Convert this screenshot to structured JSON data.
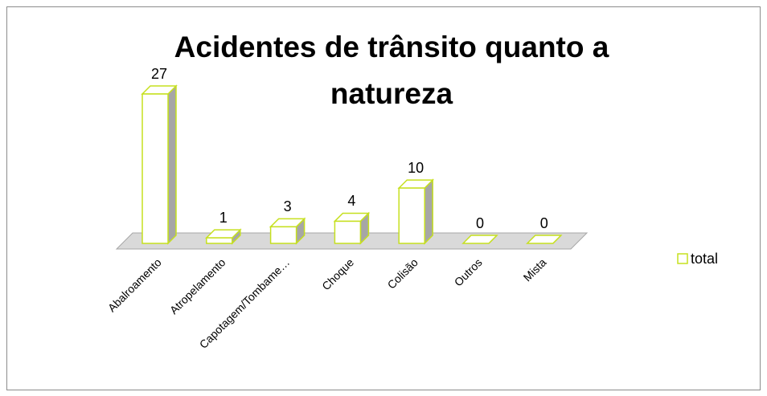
{
  "chart_data": {
    "type": "bar3d",
    "title": "Acidentes de trânsito quanto a natureza",
    "categories": [
      "Abalroamento",
      "Atropelamento",
      "Capotagem/Tombame…",
      "Choque",
      "Colisão",
      "Outros",
      "Mista"
    ],
    "series": [
      {
        "name": "total",
        "color": "#c6e01f",
        "values": [
          27,
          1,
          3,
          4,
          10,
          0,
          0
        ]
      }
    ],
    "legend": "right"
  }
}
